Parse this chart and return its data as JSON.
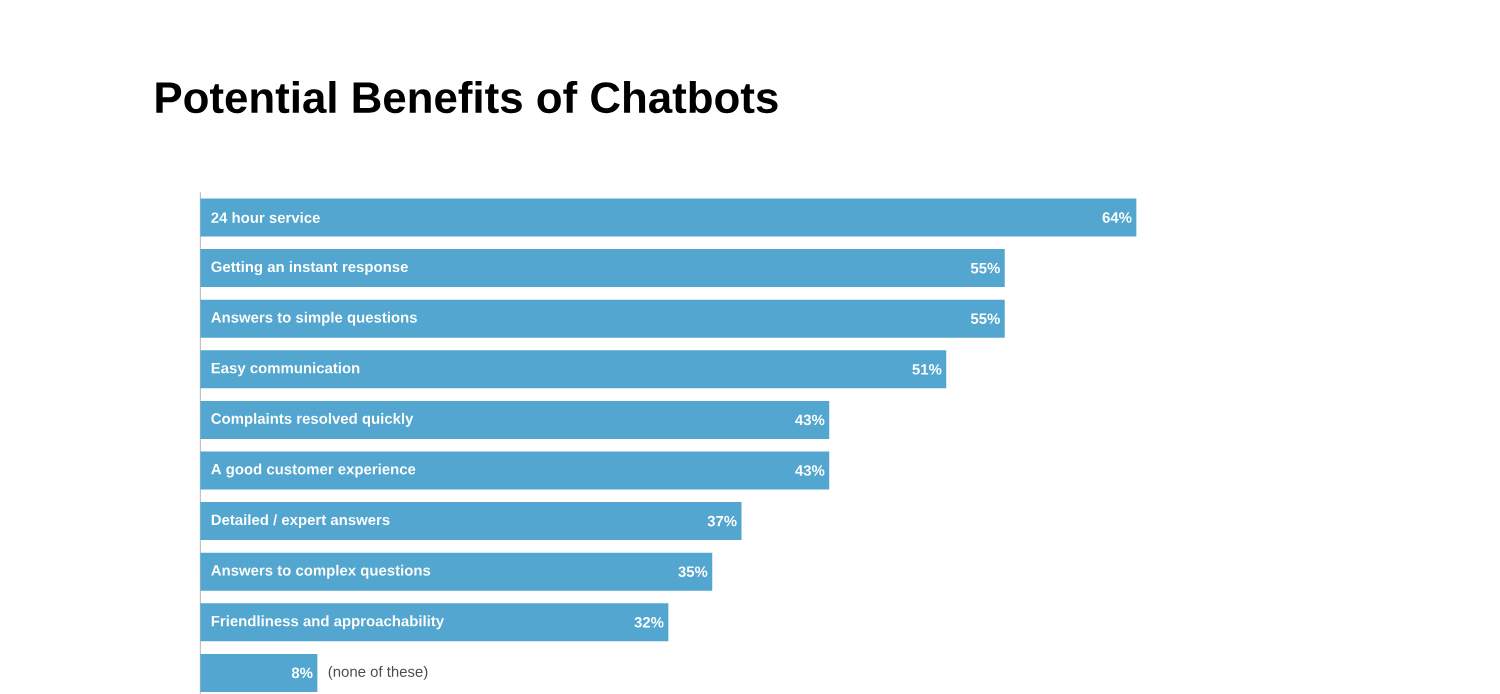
{
  "chart_data": {
    "type": "bar",
    "orientation": "horizontal",
    "title": "Potential Benefits of Chatbots",
    "categories": [
      "24 hour service",
      "Getting an instant response",
      "Answers to simple questions",
      "Easy communication",
      "Complaints resolved quickly",
      "A good customer experience",
      "Detailed / expert answers",
      "Answers to complex questions",
      "Friendliness and approachability",
      "(none of these)"
    ],
    "values": [
      64,
      55,
      55,
      51,
      43,
      43,
      37,
      35,
      32,
      8
    ],
    "value_labels": [
      "64%",
      "55%",
      "55%",
      "51%",
      "43%",
      "43%",
      "37%",
      "35%",
      "32%",
      "8%"
    ],
    "color": "#52a6cf"
  }
}
